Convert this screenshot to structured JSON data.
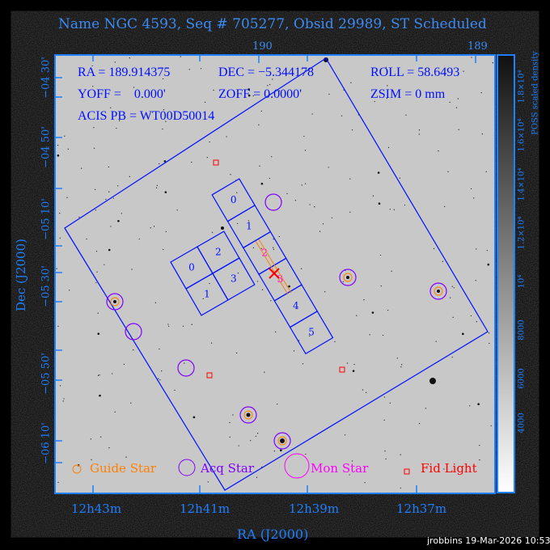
{
  "title": "Name NGC 4593, Seq # 705277, Obsid 29989, ST Scheduled",
  "top_axis_ticks": [
    "190",
    "189"
  ],
  "overlay": {
    "ra": "RA = 189.914375",
    "dec": "DEC = −5.344178",
    "roll": "ROLL = 58.6493",
    "yoff": "YOFF =    0.000'",
    "zoff": "ZOFF =  0.0000'",
    "zsim": "ZSIM = 0 mm",
    "acis_pb": "ACIS PB = WT00D50014"
  },
  "y_axis": {
    "label": "Dec (J2000)",
    "ticks": [
      "−04 30'",
      "−04 40'",
      "−04 50'",
      "−05 00'",
      "−05 10'",
      "−05 20'",
      "−05 30'",
      "−05 40'",
      "−05 50'",
      "−06 00'",
      "−06 10'"
    ]
  },
  "x_axis": {
    "label": "RA (J2000)",
    "ticks": [
      "12h43m",
      "12h41m",
      "12h39m",
      "12h37m"
    ]
  },
  "colorbar": {
    "label": "POSS scaled density",
    "ticks": [
      "4000",
      "6000",
      "8000",
      "10⁴",
      "1.2×10⁴",
      "1.4×10⁴",
      "1.6×10⁴",
      "1.8×10⁴"
    ]
  },
  "s_chips": [
    "0",
    "1",
    "2",
    "3",
    "4",
    "5"
  ],
  "i_chips": [
    "0",
    "2",
    "1",
    "3"
  ],
  "legend": {
    "guide": "Guide Star",
    "acq": "Acq Star",
    "mon": "Mon Star",
    "fid": "Fid Light"
  },
  "colors": {
    "guide": "#ff8000",
    "acq": "#8000ff",
    "mon": "#ff00ff",
    "fid": "#ff0000",
    "frame": "#1e7fff",
    "fov": "#0010ff"
  },
  "footer": "jrobbins 19-Mar-2026 10:53"
}
